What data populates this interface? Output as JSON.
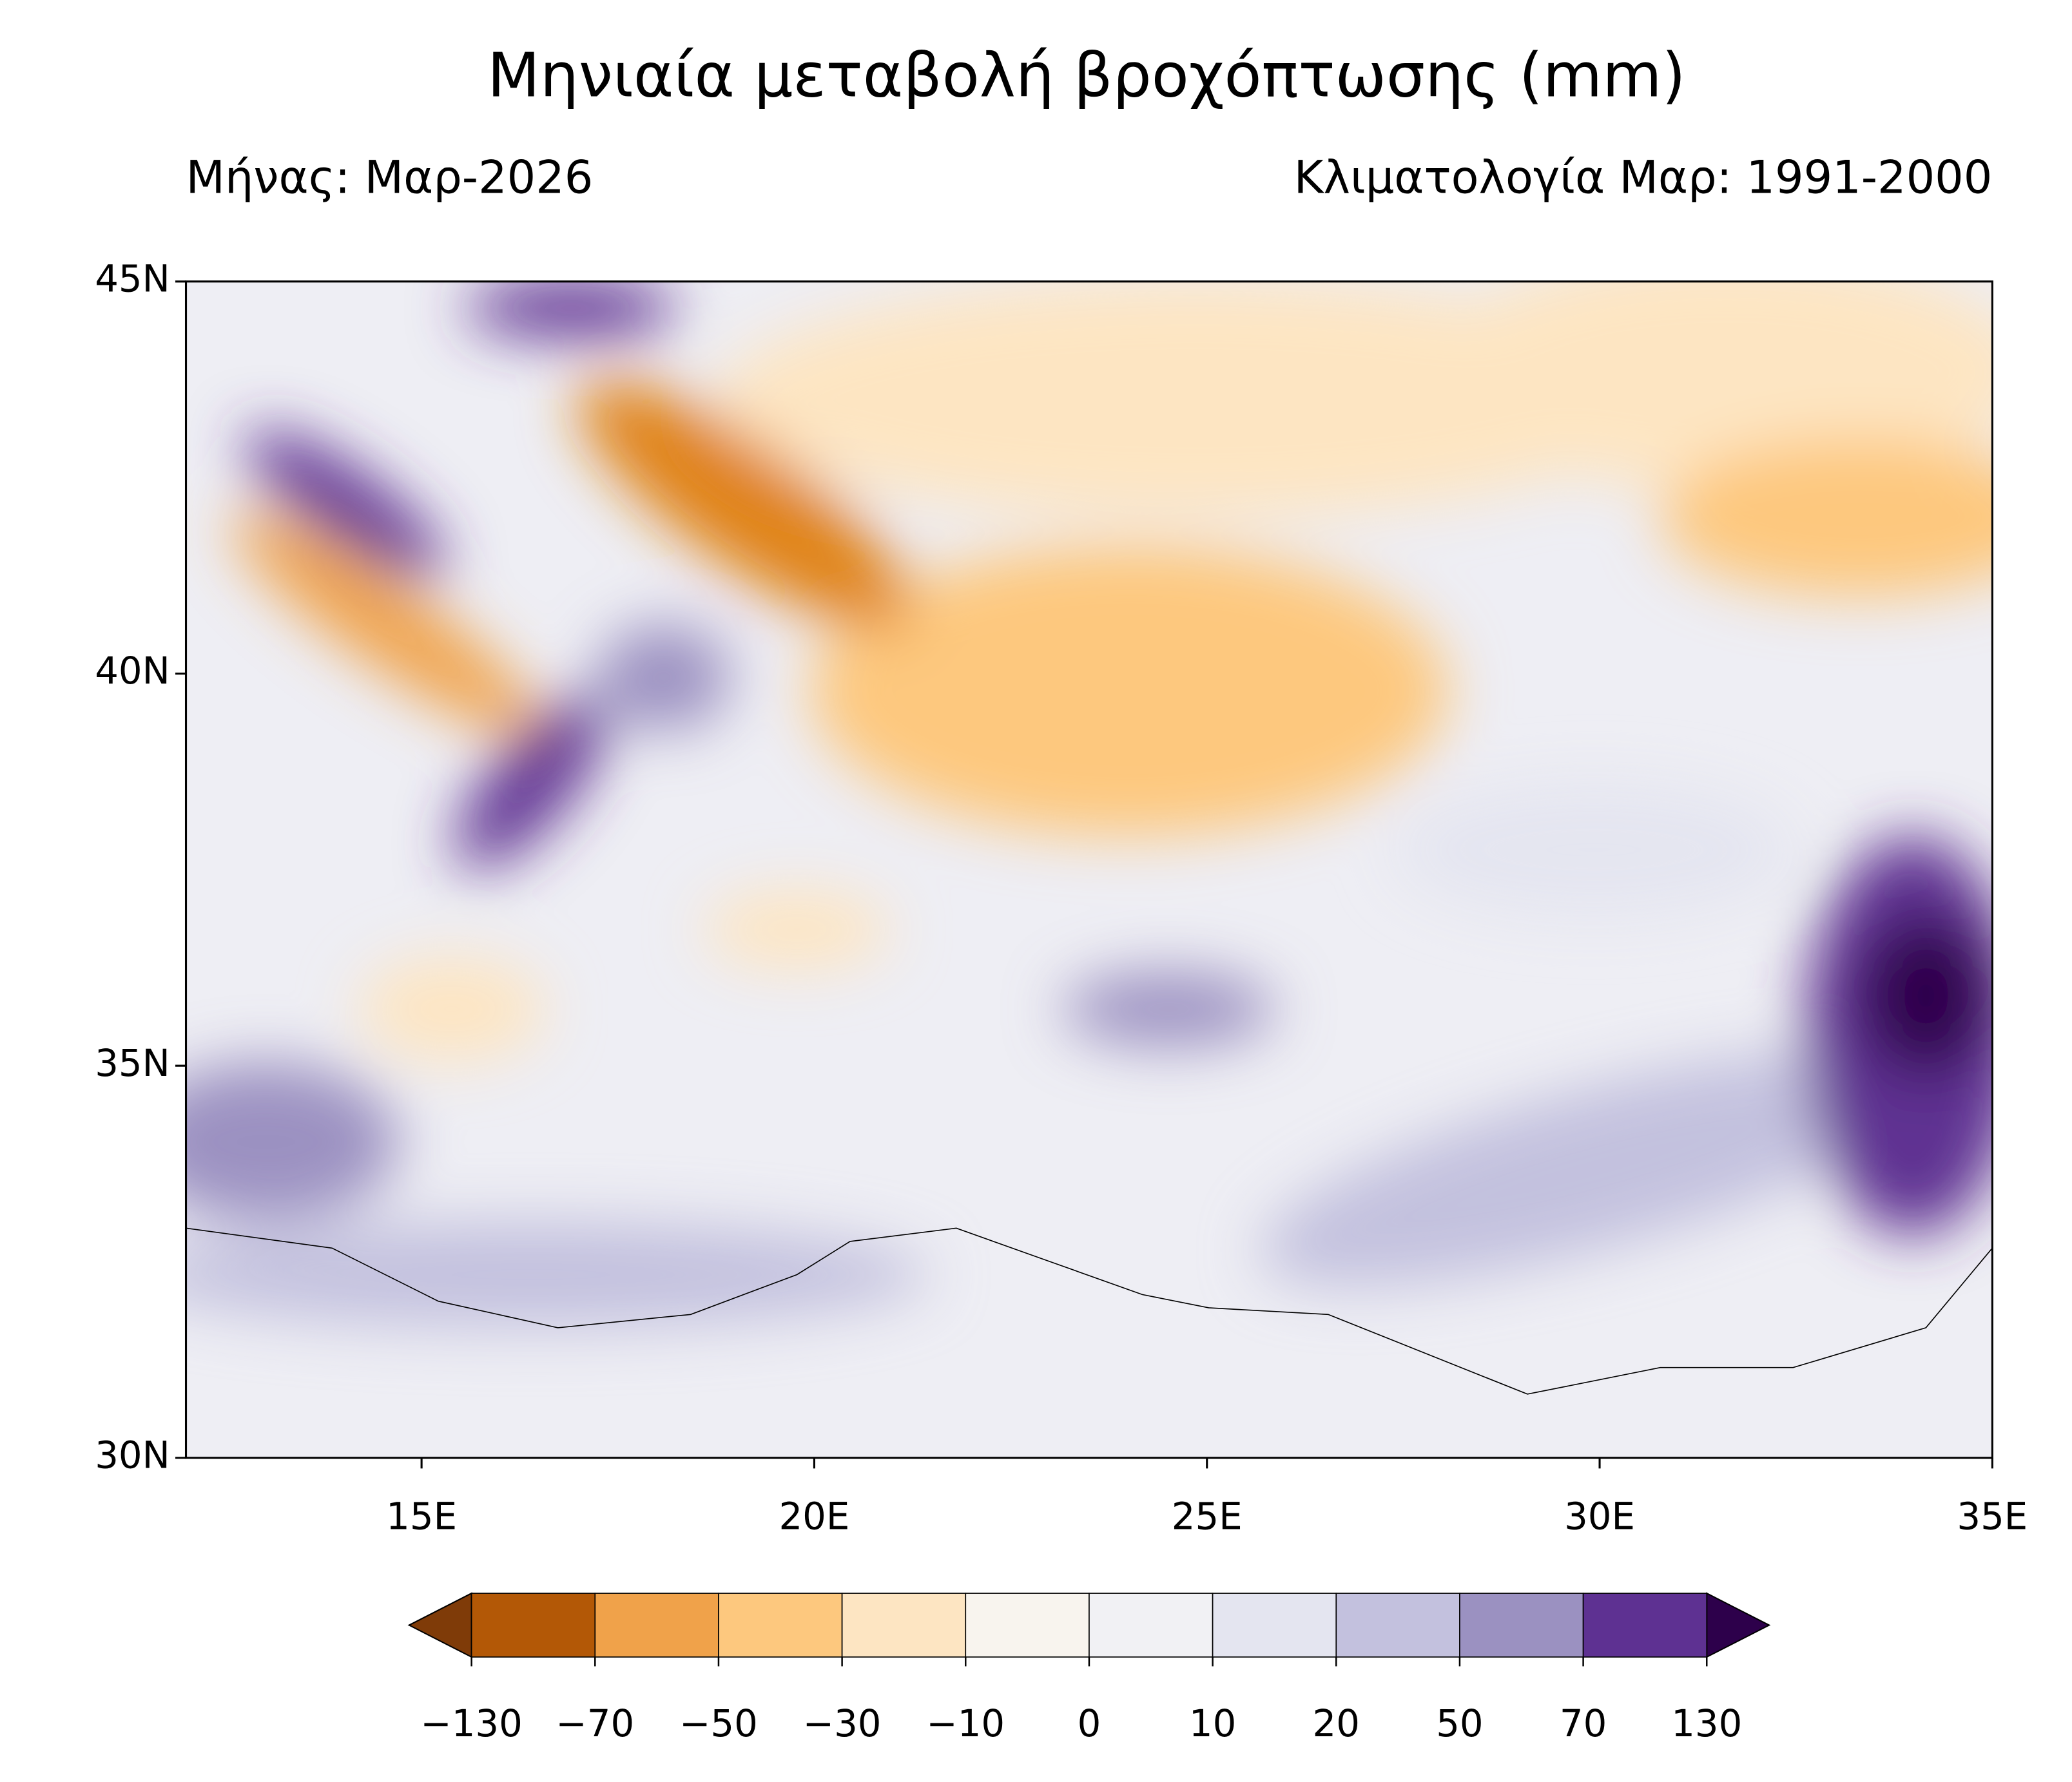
{
  "chart_data": {
    "type": "map",
    "title": "Μηνιαία μεταβολή βροχόπτωσης (mm)",
    "subtitle_left": "Μήνας: Μαρ-2026",
    "subtitle_right": "Κλιματολογία Μαρ: 1991-2000",
    "xlim": [
      12,
      35
    ],
    "ylim": [
      30,
      45
    ],
    "xticks": [
      {
        "value": 15,
        "label": "15E"
      },
      {
        "value": 20,
        "label": "20E"
      },
      {
        "value": 25,
        "label": "25E"
      },
      {
        "value": 30,
        "label": "30E"
      },
      {
        "value": 35,
        "label": "35E"
      }
    ],
    "yticks": [
      {
        "value": 30,
        "label": "30N"
      },
      {
        "value": 35,
        "label": "35N"
      },
      {
        "value": 40,
        "label": "40N"
      },
      {
        "value": 45,
        "label": "45N"
      }
    ],
    "colorbar": {
      "levels": [
        -130,
        -70,
        -50,
        -30,
        -10,
        0,
        10,
        20,
        50,
        70,
        130
      ],
      "ticks": [
        {
          "value": -130,
          "label": "−130"
        },
        {
          "value": -70,
          "label": "−70"
        },
        {
          "value": -50,
          "label": "−50"
        },
        {
          "value": -30,
          "label": "−30"
        },
        {
          "value": -10,
          "label": "−10"
        },
        0,
        10,
        20,
        50,
        70,
        130
      ],
      "colors": [
        "#b35806",
        "#f0a24a",
        "#fdc87e",
        "#fde5c2",
        "#f8f4ee",
        "#f1f1f4",
        "#e4e5f0",
        "#c3c1de",
        "#9b91c1",
        "#5e3192"
      ],
      "under_color": "#7f3b08",
      "over_color": "#2d004b"
    }
  }
}
